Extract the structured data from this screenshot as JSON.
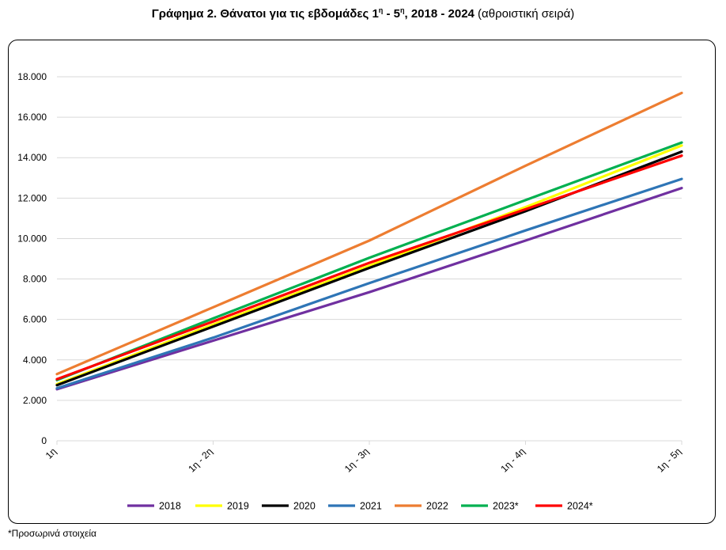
{
  "title": {
    "bold_prefix": "Γράφημα 2. Θάνατοι για τις εβδομάδες 1",
    "sup1": "η",
    "bold_mid": " - 5",
    "sup2": "η",
    "bold_suffix": ", 2018 - 2024",
    "normal_suffix": " (αθροιστική σειρά)"
  },
  "footnote": "*Προσωρινά στοιχεία",
  "chart_data": {
    "type": "line",
    "categories": [
      "1η",
      "1η - 2η",
      "1η - 3η",
      "1η - 4η",
      "1η - 5η"
    ],
    "ylim": [
      0,
      18000
    ],
    "yticks": [
      0,
      2000,
      4000,
      6000,
      8000,
      10000,
      12000,
      14000,
      16000,
      18000
    ],
    "ytick_labels": [
      "0",
      "2.000",
      "4.000",
      "6.000",
      "8.000",
      "10.000",
      "12.000",
      "14.000",
      "16.000",
      "18.000"
    ],
    "grid": true,
    "legend_position": "bottom",
    "series": [
      {
        "name": "2018",
        "color": "#7030A0",
        "values": [
          2550,
          4950,
          7350,
          9900,
          12500
        ]
      },
      {
        "name": "2019",
        "color": "#FFFF00",
        "values": [
          2800,
          5750,
          8650,
          11550,
          14600
        ]
      },
      {
        "name": "2020",
        "color": "#000000",
        "values": [
          2750,
          5650,
          8550,
          11350,
          14300
        ]
      },
      {
        "name": "2021",
        "color": "#2E75B6",
        "values": [
          2600,
          5100,
          7800,
          10400,
          12950
        ]
      },
      {
        "name": "2022",
        "color": "#ED7D31",
        "values": [
          3300,
          6600,
          9900,
          13600,
          17200
        ]
      },
      {
        "name": "2023*",
        "color": "#00B050",
        "values": [
          3000,
          6050,
          9050,
          11900,
          14750
        ]
      },
      {
        "name": "2024*",
        "color": "#FF0000",
        "values": [
          3050,
          5900,
          8800,
          11450,
          14100
        ]
      }
    ]
  }
}
